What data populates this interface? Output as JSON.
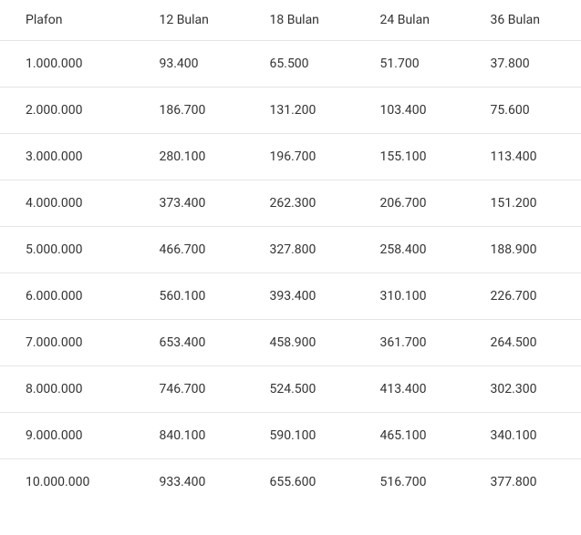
{
  "table": {
    "type": "table",
    "columns": [
      "Plafon",
      "12 Bulan",
      "18 Bulan",
      "24 Bulan",
      "36 Bulan"
    ],
    "rows": [
      [
        "1.000.000",
        "93.400",
        "65.500",
        "51.700",
        "37.800"
      ],
      [
        "2.000.000",
        "186.700",
        "131.200",
        "103.400",
        "75.600"
      ],
      [
        "3.000.000",
        "280.100",
        "196.700",
        "155.100",
        "113.400"
      ],
      [
        "4.000.000",
        "373.400",
        "262.300",
        "206.700",
        "151.200"
      ],
      [
        "5.000.000",
        "466.700",
        "327.800",
        "258.400",
        "188.900"
      ],
      [
        "6.000.000",
        "560.100",
        "393.400",
        "310.100",
        "226.700"
      ],
      [
        "7.000.000",
        "653.400",
        "458.900",
        "361.700",
        "264.500"
      ],
      [
        "8.000.000",
        "746.700",
        "524.500",
        "413.400",
        "302.300"
      ],
      [
        "9.000.000",
        "840.100",
        "590.100",
        "465.100",
        "340.100"
      ],
      [
        "10.000.000",
        "933.400",
        "655.600",
        "516.700",
        "377.800"
      ]
    ],
    "text_color": "#333333",
    "border_color": "#e5e5e5",
    "background_color": "#ffffff",
    "font_size": 14,
    "column_widths_pct": [
      23,
      19,
      19,
      19,
      20
    ]
  }
}
